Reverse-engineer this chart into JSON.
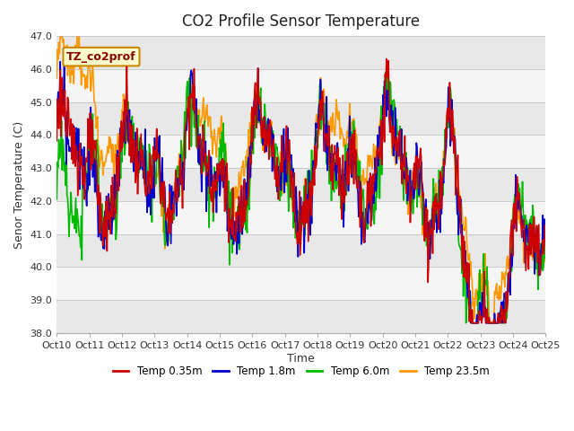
{
  "title": "CO2 Profile Sensor Temperature",
  "ylabel": "Senor Temperature (C)",
  "xlabel": "Time",
  "annotation": "TZ_co2prof",
  "ylim": [
    38.0,
    47.0
  ],
  "yticks": [
    38.0,
    39.0,
    40.0,
    41.0,
    42.0,
    43.0,
    44.0,
    45.0,
    46.0,
    47.0
  ],
  "xtick_labels": [
    "Oct 10",
    "Oct 11",
    "Oct 12",
    "Oct 13",
    "Oct 14",
    "Oct 15",
    "Oct 16",
    "Oct 17",
    "Oct 18",
    "Oct 19",
    "Oct 20",
    "Oct 21",
    "Oct 22",
    "Oct 23",
    "Oct 24",
    "Oct 25"
  ],
  "colors": {
    "red": "#cc0000",
    "blue": "#0000cc",
    "green": "#00bb00",
    "orange": "#ff9900"
  },
  "legend_labels": [
    "Temp 0.35m",
    "Temp 1.8m",
    "Temp 6.0m",
    "Temp 23.5m"
  ],
  "legend_colors": [
    "#cc0000",
    "#0000cc",
    "#00bb00",
    "#ff9900"
  ],
  "bg_color_light": "#e8e8e8",
  "bg_color_dark": "#d0d0d0",
  "annotation_bg": "#ffffcc",
  "annotation_border": "#cc8800",
  "annotation_text_color": "#880000",
  "title_fontsize": 12,
  "label_fontsize": 9,
  "tick_fontsize": 8,
  "linewidth": 1.2
}
